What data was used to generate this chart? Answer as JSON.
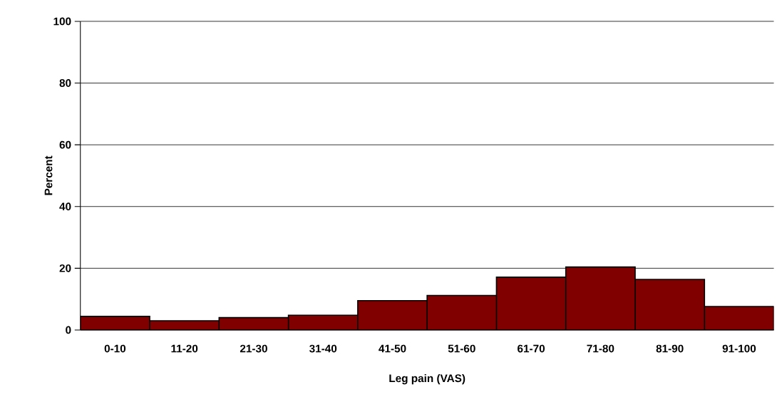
{
  "chart_data": {
    "type": "bar",
    "xlabel": "Leg pain (VAS)",
    "ylabel": "Percent",
    "categories": [
      "0-10",
      "11-20",
      "21-30",
      "31-40",
      "41-50",
      "51-60",
      "61-70",
      "71-80",
      "81-90",
      "91-100"
    ],
    "values": [
      4.4,
      3.0,
      4.0,
      4.8,
      9.5,
      11.2,
      17.1,
      20.4,
      16.4,
      7.6
    ],
    "color": "#800000",
    "ylim": [
      0,
      100
    ],
    "yticks": [
      0,
      20,
      40,
      60,
      80,
      100
    ],
    "grid": "y"
  }
}
